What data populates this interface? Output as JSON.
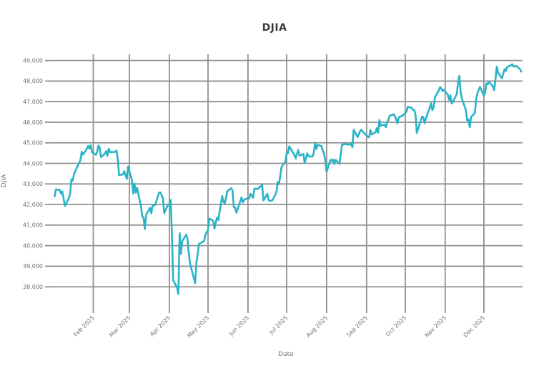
{
  "chart_data": {
    "type": "line",
    "title": "DJIA",
    "xlabel": "Date",
    "ylabel": "DJIA",
    "grid": true,
    "legend": "none",
    "colors": {
      "line": "#29b3c6",
      "grid": "#909090",
      "tick_label": "#6e6e6e",
      "title": "#3a3a3a"
    },
    "xlim": [
      "2024-12-30",
      "2025-12-31"
    ],
    "ylim": [
      37000,
      49300
    ],
    "x_ticks": [
      {
        "date": "2025-02-01",
        "label": "Feb 2025"
      },
      {
        "date": "2025-03-01",
        "label": "Mar 2025"
      },
      {
        "date": "2025-04-01",
        "label": "Apr 2025"
      },
      {
        "date": "2025-05-01",
        "label": "May 2025"
      },
      {
        "date": "2025-06-01",
        "label": "Jun 2025"
      },
      {
        "date": "2025-07-01",
        "label": "Jul 2025"
      },
      {
        "date": "2025-08-01",
        "label": "Aug 2025"
      },
      {
        "date": "2025-09-01",
        "label": "Sep 2025"
      },
      {
        "date": "2025-10-01",
        "label": "Oct 2025"
      },
      {
        "date": "2025-11-01",
        "label": "Nov 2025"
      },
      {
        "date": "2025-12-01",
        "label": "Dec 2025"
      }
    ],
    "y_ticks": [
      {
        "value": 38000,
        "label": "38,000"
      },
      {
        "value": 39000,
        "label": "39,000"
      },
      {
        "value": 40000,
        "label": "40,000"
      },
      {
        "value": 41000,
        "label": "41,000"
      },
      {
        "value": 42000,
        "label": "42,000"
      },
      {
        "value": 43000,
        "label": "43,000"
      },
      {
        "value": 44000,
        "label": "44,000"
      },
      {
        "value": 45000,
        "label": "45,000"
      },
      {
        "value": 46000,
        "label": "46,000"
      },
      {
        "value": 47000,
        "label": "47,000"
      },
      {
        "value": 48000,
        "label": "48,000"
      },
      {
        "value": 49000,
        "label": "49,000"
      }
    ],
    "series": [
      {
        "name": "DJIA",
        "points": [
          [
            "2025-01-02",
            42392
          ],
          [
            "2025-01-03",
            42732
          ],
          [
            "2025-01-06",
            42707
          ],
          [
            "2025-01-07",
            42528
          ],
          [
            "2025-01-08",
            42635
          ],
          [
            "2025-01-10",
            41938
          ],
          [
            "2025-01-13",
            42297
          ],
          [
            "2025-01-14",
            42518
          ],
          [
            "2025-01-15",
            43222
          ],
          [
            "2025-01-16",
            43153
          ],
          [
            "2025-01-17",
            43488
          ],
          [
            "2025-01-21",
            44026
          ],
          [
            "2025-01-22",
            44157
          ],
          [
            "2025-01-23",
            44565
          ],
          [
            "2025-01-24",
            44424
          ],
          [
            "2025-01-27",
            44714
          ],
          [
            "2025-01-28",
            44850
          ],
          [
            "2025-01-29",
            44713
          ],
          [
            "2025-01-30",
            44882
          ],
          [
            "2025-01-31",
            44545
          ],
          [
            "2025-02-03",
            44421
          ],
          [
            "2025-02-04",
            44556
          ],
          [
            "2025-02-05",
            44873
          ],
          [
            "2025-02-06",
            44748
          ],
          [
            "2025-02-07",
            44303
          ],
          [
            "2025-02-10",
            44470
          ],
          [
            "2025-02-11",
            44593
          ],
          [
            "2025-02-12",
            44369
          ],
          [
            "2025-02-13",
            44711
          ],
          [
            "2025-02-14",
            44546
          ],
          [
            "2025-02-18",
            44556
          ],
          [
            "2025-02-19",
            44627
          ],
          [
            "2025-02-20",
            44177
          ],
          [
            "2025-02-21",
            43428
          ],
          [
            "2025-02-24",
            43461
          ],
          [
            "2025-02-25",
            43621
          ],
          [
            "2025-02-26",
            43433
          ],
          [
            "2025-02-27",
            43240
          ],
          [
            "2025-02-28",
            43841
          ],
          [
            "2025-03-03",
            43191
          ],
          [
            "2025-03-04",
            42521
          ],
          [
            "2025-03-05",
            43007
          ],
          [
            "2025-03-06",
            42579
          ],
          [
            "2025-03-07",
            42802
          ],
          [
            "2025-03-10",
            41912
          ],
          [
            "2025-03-11",
            41433
          ],
          [
            "2025-03-12",
            41351
          ],
          [
            "2025-03-13",
            40813
          ],
          [
            "2025-03-14",
            41488
          ],
          [
            "2025-03-17",
            41841
          ],
          [
            "2025-03-18",
            41581
          ],
          [
            "2025-03-19",
            41964
          ],
          [
            "2025-03-20",
            41953
          ],
          [
            "2025-03-21",
            41985
          ],
          [
            "2025-03-24",
            42583
          ],
          [
            "2025-03-25",
            42587
          ],
          [
            "2025-03-26",
            42455
          ],
          [
            "2025-03-27",
            42300
          ],
          [
            "2025-03-28",
            41584
          ],
          [
            "2025-03-31",
            42002
          ],
          [
            "2025-04-01",
            41990
          ],
          [
            "2025-04-02",
            42225
          ],
          [
            "2025-04-03",
            40546
          ],
          [
            "2025-04-04",
            38315
          ],
          [
            "2025-04-07",
            37966
          ],
          [
            "2025-04-08",
            37646
          ],
          [
            "2025-04-09",
            40608
          ],
          [
            "2025-04-10",
            39594
          ],
          [
            "2025-04-11",
            40213
          ],
          [
            "2025-04-14",
            40525
          ],
          [
            "2025-04-15",
            40369
          ],
          [
            "2025-04-16",
            39669
          ],
          [
            "2025-04-17",
            39142
          ],
          [
            "2025-04-21",
            38170
          ],
          [
            "2025-04-22",
            39187
          ],
          [
            "2025-04-23",
            39607
          ],
          [
            "2025-04-24",
            40093
          ],
          [
            "2025-04-25",
            40114
          ],
          [
            "2025-04-28",
            40228
          ],
          [
            "2025-04-29",
            40527
          ],
          [
            "2025-04-30",
            40669
          ],
          [
            "2025-05-01",
            40753
          ],
          [
            "2025-05-02",
            41317
          ],
          [
            "2025-05-05",
            41219
          ],
          [
            "2025-05-06",
            40829
          ],
          [
            "2025-05-07",
            41114
          ],
          [
            "2025-05-08",
            41368
          ],
          [
            "2025-05-09",
            41249
          ],
          [
            "2025-05-12",
            42410
          ],
          [
            "2025-05-13",
            42140
          ],
          [
            "2025-05-14",
            42051
          ],
          [
            "2025-05-15",
            42323
          ],
          [
            "2025-05-16",
            42655
          ],
          [
            "2025-05-19",
            42792
          ],
          [
            "2025-05-20",
            42677
          ],
          [
            "2025-05-21",
            41860
          ],
          [
            "2025-05-22",
            41859
          ],
          [
            "2025-05-23",
            41603
          ],
          [
            "2025-05-27",
            42343
          ],
          [
            "2025-05-28",
            42099
          ],
          [
            "2025-05-29",
            42216
          ],
          [
            "2025-05-30",
            42270
          ],
          [
            "2025-06-02",
            42305
          ],
          [
            "2025-06-03",
            42520
          ],
          [
            "2025-06-04",
            42428
          ],
          [
            "2025-06-05",
            42320
          ],
          [
            "2025-06-06",
            42763
          ],
          [
            "2025-06-09",
            42762
          ],
          [
            "2025-06-10",
            42866
          ],
          [
            "2025-06-11",
            42872
          ],
          [
            "2025-06-12",
            42968
          ],
          [
            "2025-06-13",
            42198
          ],
          [
            "2025-06-16",
            42515
          ],
          [
            "2025-06-17",
            42216
          ],
          [
            "2025-06-18",
            42172
          ],
          [
            "2025-06-20",
            42207
          ],
          [
            "2025-06-23",
            42582
          ],
          [
            "2025-06-24",
            43089
          ],
          [
            "2025-06-25",
            42982
          ],
          [
            "2025-06-26",
            43386
          ],
          [
            "2025-06-27",
            43819
          ],
          [
            "2025-06-30",
            44095
          ],
          [
            "2025-07-01",
            44495
          ],
          [
            "2025-07-02",
            44485
          ],
          [
            "2025-07-03",
            44828
          ],
          [
            "2025-07-07",
            44406
          ],
          [
            "2025-07-08",
            44240
          ],
          [
            "2025-07-09",
            44458
          ],
          [
            "2025-07-10",
            44650
          ],
          [
            "2025-07-11",
            44372
          ],
          [
            "2025-07-14",
            44460
          ],
          [
            "2025-07-15",
            44023
          ],
          [
            "2025-07-16",
            44254
          ],
          [
            "2025-07-17",
            44484
          ],
          [
            "2025-07-18",
            44342
          ],
          [
            "2025-07-21",
            44323
          ],
          [
            "2025-07-22",
            44502
          ],
          [
            "2025-07-23",
            45010
          ],
          [
            "2025-07-24",
            44694
          ],
          [
            "2025-07-25",
            44902
          ],
          [
            "2025-07-28",
            44838
          ],
          [
            "2025-07-29",
            44633
          ],
          [
            "2025-07-30",
            44461
          ],
          [
            "2025-07-31",
            44131
          ],
          [
            "2025-08-01",
            43589
          ],
          [
            "2025-08-04",
            44174
          ],
          [
            "2025-08-05",
            44112
          ],
          [
            "2025-08-06",
            44193
          ],
          [
            "2025-08-07",
            43969
          ],
          [
            "2025-08-08",
            44176
          ],
          [
            "2025-08-11",
            43975
          ],
          [
            "2025-08-12",
            44458
          ],
          [
            "2025-08-13",
            44922
          ],
          [
            "2025-08-14",
            44911
          ],
          [
            "2025-08-15",
            44946
          ],
          [
            "2025-08-18",
            44912
          ],
          [
            "2025-08-19",
            44922
          ],
          [
            "2025-08-20",
            44938
          ],
          [
            "2025-08-21",
            44786
          ],
          [
            "2025-08-22",
            45632
          ],
          [
            "2025-08-25",
            45283
          ],
          [
            "2025-08-26",
            45418
          ],
          [
            "2025-08-27",
            45565
          ],
          [
            "2025-08-28",
            45637
          ],
          [
            "2025-08-29",
            45545
          ],
          [
            "2025-09-02",
            45296
          ],
          [
            "2025-09-03",
            45271
          ],
          [
            "2025-09-04",
            45621
          ],
          [
            "2025-09-05",
            45401
          ],
          [
            "2025-09-08",
            45515
          ],
          [
            "2025-09-09",
            45711
          ],
          [
            "2025-09-10",
            45490
          ],
          [
            "2025-09-11",
            46108
          ],
          [
            "2025-09-12",
            45834
          ],
          [
            "2025-09-15",
            45883
          ],
          [
            "2025-09-16",
            45758
          ],
          [
            "2025-09-17",
            46018
          ],
          [
            "2025-09-18",
            46142
          ],
          [
            "2025-09-19",
            46315
          ],
          [
            "2025-09-22",
            46381
          ],
          [
            "2025-09-23",
            46293
          ],
          [
            "2025-09-24",
            46121
          ],
          [
            "2025-09-25",
            45947
          ],
          [
            "2025-09-26",
            46247
          ],
          [
            "2025-09-29",
            46316
          ],
          [
            "2025-09-30",
            46398
          ],
          [
            "2025-10-01",
            46441
          ],
          [
            "2025-10-02",
            46520
          ],
          [
            "2025-10-03",
            46758
          ],
          [
            "2025-10-06",
            46694
          ],
          [
            "2025-10-07",
            46603
          ],
          [
            "2025-10-08",
            46601
          ],
          [
            "2025-10-09",
            46358
          ],
          [
            "2025-10-10",
            45480
          ],
          [
            "2025-10-13",
            46067
          ],
          [
            "2025-10-14",
            46270
          ],
          [
            "2025-10-15",
            46253
          ],
          [
            "2025-10-16",
            45952
          ],
          [
            "2025-10-17",
            46190
          ],
          [
            "2025-10-20",
            46707
          ],
          [
            "2025-10-21",
            46925
          ],
          [
            "2025-10-22",
            46591
          ],
          [
            "2025-10-23",
            46735
          ],
          [
            "2025-10-24",
            47207
          ],
          [
            "2025-10-27",
            47545
          ],
          [
            "2025-10-28",
            47707
          ],
          [
            "2025-10-29",
            47632
          ],
          [
            "2025-10-30",
            47522
          ],
          [
            "2025-10-31",
            47563
          ],
          [
            "2025-11-03",
            47337
          ],
          [
            "2025-11-04",
            47085
          ],
          [
            "2025-11-05",
            47311
          ],
          [
            "2025-11-06",
            46912
          ],
          [
            "2025-11-07",
            46987
          ],
          [
            "2025-11-10",
            47369
          ],
          [
            "2025-11-11",
            47928
          ],
          [
            "2025-11-12",
            48255
          ],
          [
            "2025-11-13",
            47457
          ],
          [
            "2025-11-14",
            47147
          ],
          [
            "2025-11-17",
            46590
          ],
          [
            "2025-11-18",
            46091
          ],
          [
            "2025-11-19",
            46138
          ],
          [
            "2025-11-20",
            45752
          ],
          [
            "2025-11-21",
            46245
          ],
          [
            "2025-11-24",
            46448
          ],
          [
            "2025-11-25",
            47112
          ],
          [
            "2025-11-26",
            47427
          ],
          [
            "2025-11-28",
            47716
          ],
          [
            "2025-12-01",
            47289
          ],
          [
            "2025-12-02",
            47474
          ],
          [
            "2025-12-03",
            47882
          ],
          [
            "2025-12-04",
            47850
          ],
          [
            "2025-12-05",
            47954
          ],
          [
            "2025-12-08",
            47739
          ],
          [
            "2025-12-09",
            47560
          ],
          [
            "2025-12-10",
            48057
          ],
          [
            "2025-12-11",
            48704
          ],
          [
            "2025-12-12",
            48417
          ],
          [
            "2025-12-15",
            48135
          ],
          [
            "2025-12-16",
            48360
          ],
          [
            "2025-12-17",
            48582
          ],
          [
            "2025-12-18",
            48490
          ],
          [
            "2025-12-19",
            48680
          ],
          [
            "2025-12-22",
            48770
          ],
          [
            "2025-12-23",
            48820
          ],
          [
            "2025-12-24",
            48700
          ],
          [
            "2025-12-26",
            48740
          ],
          [
            "2025-12-29",
            48580
          ],
          [
            "2025-12-30",
            48460
          ]
        ]
      }
    ]
  }
}
